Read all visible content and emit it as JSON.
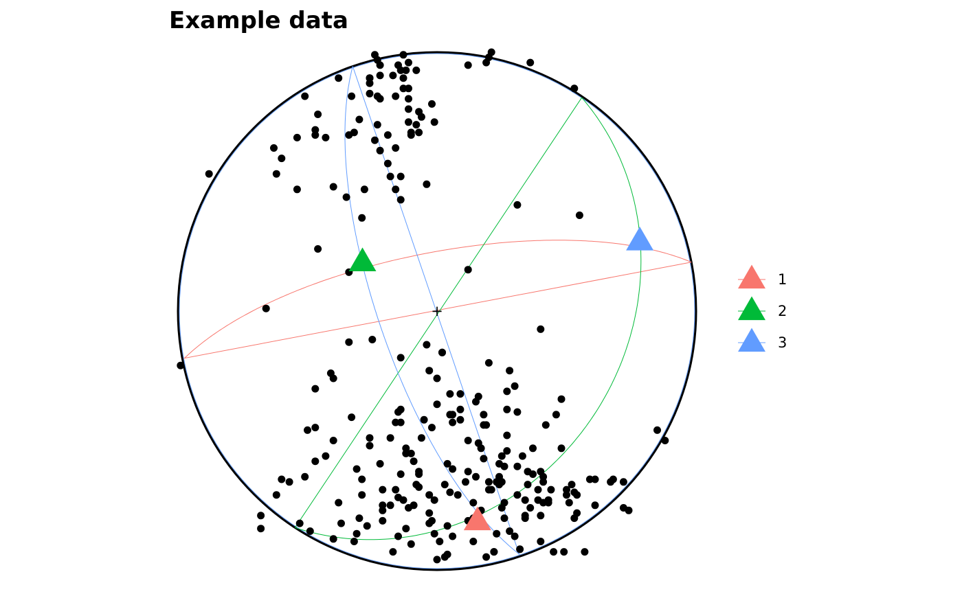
{
  "chart_data": {
    "type": "scatter",
    "projection": "stereonet",
    "title": "Example data",
    "center_marker": "+",
    "colors": {
      "points": "#000000",
      "outline": "#000000",
      "series1": "#F8766D",
      "series2": "#00BA38",
      "series3": "#619CFF"
    },
    "points": [
      [
        0.22,
        -0.93
      ],
      [
        0.04,
        -0.94
      ],
      [
        0.19,
        -0.95
      ],
      [
        -0.1,
        -0.9
      ],
      [
        -0.31,
        -0.86
      ],
      [
        0.06,
        -0.87
      ],
      [
        -0.12,
        -0.84
      ],
      [
        -0.49,
        -0.85
      ],
      [
        -0.21,
        -0.81
      ],
      [
        -0.27,
        -0.83
      ],
      [
        -0.21,
        -0.77
      ],
      [
        -0.03,
        -0.78
      ],
      [
        -0.01,
        -0.73
      ],
      [
        -0.03,
        -0.71
      ],
      [
        -0.16,
        -0.69
      ],
      [
        -0.21,
        -0.69
      ],
      [
        -0.14,
        -0.63
      ],
      [
        -0.22,
        -0.59
      ],
      [
        -0.09,
        -0.58
      ],
      [
        0.04,
        -0.59
      ],
      [
        -0.18,
        -0.49
      ],
      [
        -0.16,
        -0.43
      ],
      [
        0.0,
        -0.36
      ],
      [
        -0.14,
        -0.38
      ],
      [
        -0.14,
        -0.43
      ],
      [
        -0.02,
        -0.45
      ],
      [
        -0.06,
        -0.49
      ],
      [
        -0.26,
        -0.49
      ],
      [
        -0.4,
        -0.5
      ],
      [
        -0.1,
        -0.55
      ],
      [
        -0.47,
        -0.58
      ],
      [
        -0.57,
        -0.66
      ],
      [
        -0.6,
        -0.65
      ],
      [
        -0.29,
        -0.65
      ],
      [
        -0.13,
        -0.73
      ],
      [
        -0.08,
        -0.67
      ],
      [
        -0.18,
        -0.75
      ],
      [
        -0.32,
        -0.89
      ],
      [
        -0.07,
        -0.68
      ],
      [
        -0.53,
        -0.82
      ],
      [
        -0.3,
        -0.8
      ],
      [
        -0.12,
        -0.53
      ],
      [
        -0.26,
        -0.52
      ],
      [
        -0.33,
        -0.41
      ],
      [
        -0.47,
        -0.45
      ],
      [
        -0.31,
        -0.61
      ],
      [
        -0.62,
        -0.71
      ],
      [
        -0.21,
        -0.75
      ],
      [
        -0.15,
        -0.39
      ],
      [
        -0.68,
        -0.84
      ],
      [
        -0.38,
        -0.74
      ],
      [
        0.12,
        0.95
      ],
      [
        0.2,
        0.98
      ],
      [
        0.53,
        0.86
      ],
      [
        0.19,
        0.96
      ],
      [
        -0.17,
        0.91
      ],
      [
        -0.51,
        0.83
      ],
      [
        0.36,
        0.96
      ],
      [
        0.55,
        0.37
      ],
      [
        0.31,
        0.41
      ],
      [
        -0.01,
        -0.86
      ],
      [
        0.28,
        -0.23
      ],
      [
        -0.46,
        0.24
      ],
      [
        -0.46,
        0.76
      ],
      [
        -0.14,
        0.52
      ],
      [
        -0.28,
        0.47
      ],
      [
        -0.32,
        0.69
      ],
      [
        -0.1,
        0.68
      ],
      [
        -0.16,
        0.83
      ],
      [
        -0.47,
        0.7
      ],
      [
        -0.63,
        0.63
      ],
      [
        -0.88,
        0.53
      ],
      [
        -0.54,
        0.67
      ],
      [
        -0.22,
        0.95
      ],
      [
        -0.22,
        0.91
      ],
      [
        -0.07,
        0.69
      ],
      [
        -0.13,
        0.9
      ],
      [
        -0.26,
        0.84
      ],
      [
        -0.33,
        0.83
      ],
      [
        -0.22,
        0.82
      ],
      [
        -0.11,
        0.82
      ],
      [
        -0.11,
        0.86
      ],
      [
        -0.26,
        0.9
      ],
      [
        -0.23,
        0.97
      ],
      [
        -0.34,
        0.68
      ],
      [
        -0.43,
        0.67
      ],
      [
        -0.13,
        0.99
      ],
      [
        -0.1,
        0.69
      ],
      [
        -0.04,
        0.49
      ],
      [
        -0.16,
        0.63
      ],
      [
        -0.11,
        0.78
      ],
      [
        -0.35,
        0.44
      ],
      [
        -0.24,
        0.66
      ],
      [
        -0.11,
        0.73
      ],
      [
        -0.6,
        0.59
      ],
      [
        -0.26,
        0.88
      ],
      [
        -0.19,
        0.57
      ],
      [
        -0.23,
        0.83
      ],
      [
        -0.19,
        0.68
      ],
      [
        -0.14,
        0.93
      ],
      [
        -0.06,
        0.75
      ],
      [
        -0.3,
        0.74
      ],
      [
        -0.02,
        0.8
      ],
      [
        -0.01,
        0.73
      ],
      [
        -0.11,
        0.96
      ],
      [
        0.21,
        1.0
      ],
      [
        -0.29,
        0.36
      ],
      [
        -0.47,
        0.68
      ],
      [
        -0.14,
        0.43
      ],
      [
        -0.07,
        0.77
      ],
      [
        -0.23,
        0.72
      ],
      [
        -0.13,
        0.86
      ],
      [
        -0.16,
        0.47
      ],
      [
        -0.18,
        0.52
      ],
      [
        -0.4,
        0.48
      ],
      [
        -0.62,
        0.53
      ],
      [
        -0.24,
        0.99
      ],
      [
        -0.26,
        0.9
      ],
      [
        -0.22,
        0.62
      ],
      [
        -0.08,
        0.72
      ],
      [
        -0.08,
        0.93
      ],
      [
        -0.15,
        0.95
      ],
      [
        -0.54,
        0.47
      ],
      [
        -0.38,
        0.9
      ],
      [
        -0.12,
        0.93
      ],
      [
        -0.47,
        -0.3
      ],
      [
        -0.41,
        -0.24
      ],
      [
        -0.4,
        -0.26
      ],
      [
        -0.25,
        -0.11
      ],
      [
        -0.34,
        -0.12
      ],
      [
        -0.14,
        -0.18
      ],
      [
        -0.04,
        -0.13
      ],
      [
        0.02,
        -0.16
      ],
      [
        0.06,
        -0.4
      ],
      [
        -0.03,
        -0.23
      ],
      [
        0.0,
        -0.26
      ],
      [
        0.06,
        -0.43
      ],
      [
        -0.05,
        -0.42
      ],
      [
        0.2,
        -0.2
      ],
      [
        0.18,
        -0.4
      ],
      [
        0.16,
        -0.33
      ],
      [
        0.09,
        -0.42
      ],
      [
        0.18,
        -0.44
      ],
      [
        0.27,
        -0.38
      ],
      [
        0.19,
        -0.44
      ],
      [
        0.3,
        -0.29
      ],
      [
        0.27,
        -0.31
      ],
      [
        0.37,
        -0.53
      ],
      [
        0.33,
        -0.56
      ],
      [
        0.23,
        -0.66
      ],
      [
        0.31,
        -0.6
      ],
      [
        0.26,
        -0.6
      ],
      [
        0.35,
        -0.62
      ],
      [
        0.41,
        -0.66
      ],
      [
        0.43,
        -0.73
      ],
      [
        0.26,
        -0.74
      ],
      [
        0.3,
        -0.87
      ],
      [
        0.32,
        -0.92
      ],
      [
        0.22,
        -0.93
      ],
      [
        0.4,
        -0.79
      ],
      [
        0.35,
        -0.67
      ],
      [
        0.37,
        -0.63
      ],
      [
        0.34,
        -0.73
      ],
      [
        0.39,
        -0.73
      ],
      [
        0.44,
        -0.69
      ],
      [
        0.5,
        -0.71
      ],
      [
        0.53,
        -0.8
      ],
      [
        0.52,
        -0.67
      ],
      [
        0.59,
        -0.65
      ],
      [
        0.61,
        -0.65
      ],
      [
        0.72,
        -0.76
      ],
      [
        0.74,
        -0.77
      ],
      [
        0.88,
        -0.5
      ],
      [
        0.85,
        -0.46
      ],
      [
        0.34,
        -0.79
      ],
      [
        0.34,
        -0.8
      ],
      [
        0.05,
        -0.4
      ],
      [
        0.09,
        -0.38
      ],
      [
        0.05,
        -0.32
      ],
      [
        0.09,
        -0.32
      ],
      [
        0.18,
        -0.57
      ],
      [
        0.25,
        -0.76
      ],
      [
        0.45,
        -0.93
      ],
      [
        0.49,
        -0.93
      ],
      [
        0.17,
        -0.53
      ],
      [
        -0.07,
        -0.63
      ],
      [
        0.12,
        -0.5
      ],
      [
        0.06,
        -0.61
      ],
      [
        0.03,
        -0.67
      ],
      [
        -0.09,
        -0.75
      ],
      [
        -0.03,
        -0.82
      ],
      [
        0.0,
        -0.96
      ],
      [
        0.14,
        -0.89
      ],
      [
        0.36,
        -0.76
      ],
      [
        0.28,
        -0.85
      ],
      [
        0.05,
        -0.7
      ],
      [
        0.14,
        -0.74
      ],
      [
        -0.07,
        -0.62
      ],
      [
        0.12,
        -0.62
      ],
      [
        -0.15,
        -0.72
      ],
      [
        0.24,
        -0.59
      ],
      [
        0.16,
        -0.51
      ],
      [
        0.25,
        -0.56
      ],
      [
        0.48,
        -0.53
      ],
      [
        0.4,
        -0.62
      ],
      [
        0.15,
        -0.64
      ],
      [
        -0.15,
        -0.87
      ],
      [
        -0.37,
        -0.82
      ],
      [
        -0.43,
        -0.56
      ],
      [
        -0.51,
        -0.64
      ],
      [
        0.51,
        -0.74
      ],
      [
        0.61,
        -0.75
      ],
      [
        0.17,
        -0.77
      ],
      [
        0.39,
        -0.69
      ],
      [
        -0.99,
        -0.21
      ],
      [
        0.08,
        -0.71
      ],
      [
        0.11,
        -0.66
      ],
      [
        0.25,
        -0.66
      ],
      [
        0.31,
        -0.71
      ],
      [
        0.68,
        -0.65
      ],
      [
        0.72,
        -0.66
      ],
      [
        0.54,
        -0.71
      ],
      [
        0.67,
        -0.66
      ],
      [
        0.41,
        -0.74
      ],
      [
        0.12,
        -0.81
      ],
      [
        0.04,
        -0.83
      ],
      [
        0.01,
        -0.89
      ],
      [
        -0.17,
        -0.93
      ],
      [
        0.46,
        -0.4
      ],
      [
        0.48,
        -0.34
      ],
      [
        0.27,
        -0.54
      ],
      [
        0.15,
        -0.35
      ],
      [
        -0.02,
        -0.81
      ],
      [
        0.43,
        -0.74
      ],
      [
        -0.68,
        -0.79
      ],
      [
        0.4,
        -0.07
      ],
      [
        0.24,
        -0.67
      ],
      [
        0.21,
        -0.69
      ],
      [
        0.24,
        -0.64
      ],
      [
        -0.34,
        0.15
      ],
      [
        0.12,
        0.16
      ],
      [
        0.02,
        -0.16
      ],
      [
        0.5,
        -0.69
      ],
      [
        0.42,
        -0.44
      ],
      [
        0.2,
        -0.66
      ],
      [
        0.26,
        -0.8
      ],
      [
        0.23,
        -0.86
      ],
      [
        -0.12,
        -0.55
      ],
      [
        -0.29,
        -0.71
      ],
      [
        0.54,
        -0.78
      ],
      [
        0.27,
        -0.48
      ],
      [
        0.53,
        -0.7
      ],
      [
        -0.11,
        -0.76
      ],
      [
        0.2,
        -0.69
      ],
      [
        0.31,
        -0.39
      ],
      [
        0.41,
        -0.64
      ],
      [
        0.57,
        -0.93
      ],
      [
        0.4,
        -0.89
      ],
      [
        -0.4,
        -0.88
      ],
      [
        -0.5,
        -0.46
      ],
      [
        0.03,
        -0.95
      ],
      [
        0.14,
        -0.8
      ],
      [
        -0.66,
        0.01
      ]
    ],
    "great_circles": [
      {
        "series": "1",
        "color": "#F8766D",
        "pole": [
          0.1561,
          -0.8117
        ]
      },
      {
        "series": "2",
        "color": "#00BA38",
        "pole": [
          -0.2878,
          0.1886
        ]
      },
      {
        "series": "3",
        "color": "#619CFF",
        "pole": [
          0.7827,
          0.2694
        ]
      }
    ],
    "legend": {
      "position": "right",
      "items": [
        {
          "label": "1",
          "color": "#F8766D"
        },
        {
          "label": "2",
          "color": "#00BA38"
        },
        {
          "label": "3",
          "color": "#619CFF"
        }
      ]
    }
  }
}
